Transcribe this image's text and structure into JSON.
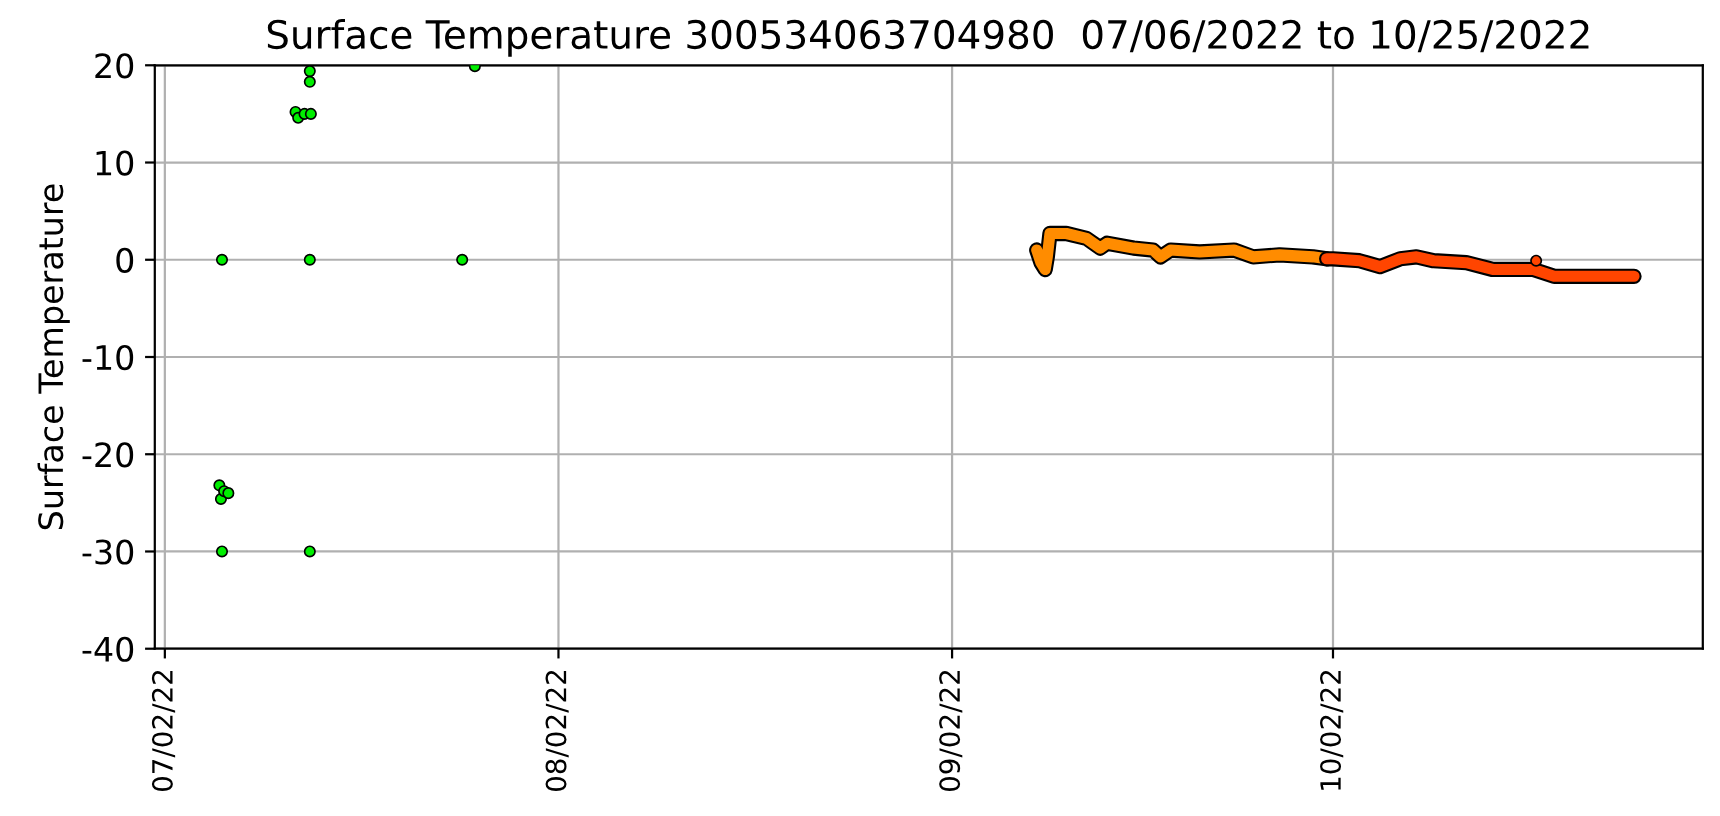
{
  "chart_data": {
    "type": "scatter",
    "title": "Surface Temperature 300534063704980  07/06/2022 to 10/25/2022",
    "ylabel": "Surface Temperature",
    "xlim": [
      "2022-07-01T05:00",
      "2022-10-31T03:00"
    ],
    "xticks": [
      {
        "value": "2022-07-02",
        "label": "07/02/22"
      },
      {
        "value": "2022-08-02",
        "label": "08/02/22"
      },
      {
        "value": "2022-09-02",
        "label": "09/02/22"
      },
      {
        "value": "2022-10-02",
        "label": "10/02/22"
      }
    ],
    "ylim": [
      -40,
      20
    ],
    "yticks": [
      -40,
      -30,
      -20,
      -10,
      0,
      10,
      20
    ],
    "grid": true,
    "marker": "circle",
    "series": [
      {
        "color": "#00ee00",
        "x": [
          "2022-07-06T12:00",
          "2022-07-06T12:00",
          "2022-07-06T07:00",
          "2022-07-06T10:00",
          "2022-07-06T16:00",
          "2022-07-07T00:00",
          "2022-07-12T07:00",
          "2022-07-12T12:00",
          "2022-07-13T00:00",
          "2022-07-13T12:00",
          "2022-07-13T10:00",
          "2022-07-13T10:00",
          "2022-07-13T10:00",
          "2022-07-13T10:00",
          "2022-07-25T10:00",
          "2022-07-26T10:00"
        ],
        "values": [
          -30,
          0,
          -23.2,
          -24.6,
          -23.8,
          -24.0,
          15.2,
          14.6,
          15.0,
          15.0,
          19.4,
          18.3,
          0,
          -30,
          0,
          19.9
        ]
      },
      {
        "type": "line",
        "marker": "none",
        "color": "#ff8c00",
        "x": [
          "2022-09-08T16:00",
          "2022-09-09T00:00",
          "2022-09-09T08:00",
          "2022-09-09T12:00",
          "2022-09-09T17:00",
          "2022-09-11T00:00",
          "2022-09-12T14:00",
          "2022-09-13T16:00",
          "2022-09-14T05:00",
          "2022-09-16T07:00",
          "2022-09-17T20:00",
          "2022-09-18T10:00",
          "2022-09-19T05:00",
          "2022-09-21T12:00",
          "2022-09-24T05:00",
          "2022-09-25T17:00",
          "2022-09-27T19:00",
          "2022-09-30T10:00",
          "2022-10-01T12:00"
        ],
        "values": [
          1.0,
          -0.3,
          -1.0,
          0.3,
          2.7,
          2.7,
          2.2,
          1.2,
          1.7,
          1.2,
          1.0,
          0.3,
          1.0,
          0.8,
          1.0,
          0.3,
          0.5,
          0.3,
          0.1
        ]
      },
      {
        "type": "line",
        "marker": "none",
        "color": "#ff4500",
        "x": [
          "2022-10-01T12:00",
          "2022-10-02T00:00",
          "2022-10-04T02:00",
          "2022-10-05T17:00",
          "2022-10-07T07:00",
          "2022-10-08T14:00",
          "2022-10-09T22:00",
          "2022-10-12T12:00",
          "2022-10-14T14:00",
          "2022-10-17T19:00",
          "2022-10-19T10:00",
          "2022-10-25T17:00"
        ],
        "values": [
          0.1,
          0.1,
          -0.1,
          -0.7,
          0.1,
          0.3,
          -0.1,
          -0.3,
          -1.0,
          -1.0,
          -1.7,
          -1.7
        ]
      },
      {
        "color": "#ff4500",
        "x": [
          "2022-10-18T00:00"
        ],
        "values": [
          -0.1
        ]
      }
    ]
  }
}
